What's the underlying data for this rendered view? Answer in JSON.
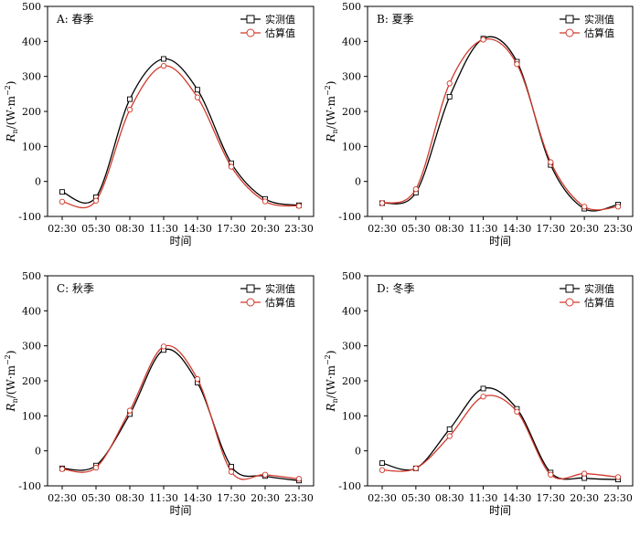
{
  "colors": {
    "measured": "#000000",
    "estimated": "#d0392b"
  },
  "chart_data": [
    {
      "type": "line",
      "title": "A: 春季",
      "xlabel": "时间",
      "ylabel": {
        "main": "R",
        "sub": "n",
        "unit": "/(W·m",
        "sup": "−2",
        "close": ")"
      },
      "categories": [
        "02:30",
        "05:30",
        "08:30",
        "11:30",
        "14:30",
        "17:30",
        "20:30",
        "23:30"
      ],
      "ylim": [
        -100,
        500
      ],
      "yticks": [
        -100,
        0,
        100,
        200,
        300,
        400,
        500
      ],
      "legend": "top-right",
      "series": [
        {
          "name": "实测值",
          "values": [
            -30,
            -45,
            235,
            350,
            262,
            52,
            -50,
            -68
          ]
        },
        {
          "name": "估算值",
          "values": [
            -58,
            -55,
            205,
            330,
            240,
            42,
            -57,
            -70
          ]
        }
      ]
    },
    {
      "type": "line",
      "title": "B: 夏季",
      "xlabel": "时间",
      "ylabel": {
        "main": "R",
        "sub": "n",
        "unit": "/(W·m",
        "sup": "−2",
        "close": ")"
      },
      "categories": [
        "02:30",
        "05:30",
        "08:30",
        "11:30",
        "14:30",
        "17:30",
        "20:30",
        "23:30"
      ],
      "ylim": [
        -100,
        500
      ],
      "yticks": [
        -100,
        0,
        100,
        200,
        300,
        400,
        500
      ],
      "legend": "top-right",
      "series": [
        {
          "name": "实测值",
          "values": [
            -62,
            -32,
            242,
            408,
            342,
            47,
            -78,
            -66
          ]
        },
        {
          "name": "估算值",
          "values": [
            -62,
            -22,
            280,
            405,
            335,
            55,
            -72,
            -72
          ]
        }
      ]
    },
    {
      "type": "line",
      "title": "C: 秋季",
      "xlabel": "时间",
      "ylabel": {
        "main": "R",
        "sub": "n",
        "unit": "/(W·m",
        "sup": "−2",
        "close": ")"
      },
      "categories": [
        "02:30",
        "05:30",
        "08:30",
        "11:30",
        "14:30",
        "17:30",
        "20:30",
        "23:30"
      ],
      "ylim": [
        -100,
        500
      ],
      "yticks": [
        -100,
        0,
        100,
        200,
        300,
        400,
        500
      ],
      "legend": "top-right",
      "series": [
        {
          "name": "实测值",
          "values": [
            -50,
            -42,
            105,
            288,
            195,
            -45,
            -72,
            -85
          ]
        },
        {
          "name": "估算值",
          "values": [
            -52,
            -48,
            115,
            298,
            205,
            -60,
            -68,
            -80
          ]
        }
      ]
    },
    {
      "type": "line",
      "title": "D: 冬季",
      "xlabel": "时间",
      "ylabel": {
        "main": "R",
        "sub": "n",
        "unit": "/(W·m",
        "sup": "−2",
        "close": ")"
      },
      "categories": [
        "02:30",
        "05:30",
        "08:30",
        "11:30",
        "14:30",
        "17:30",
        "20:30",
        "23:30"
      ],
      "ylim": [
        -100,
        500
      ],
      "yticks": [
        -100,
        0,
        100,
        200,
        300,
        400,
        500
      ],
      "legend": "top-right",
      "series": [
        {
          "name": "实测值",
          "values": [
            -35,
            -50,
            62,
            178,
            120,
            -62,
            -78,
            -82
          ]
        },
        {
          "name": "估算值",
          "values": [
            -55,
            -50,
            42,
            155,
            112,
            -68,
            -65,
            -75
          ]
        }
      ]
    }
  ]
}
